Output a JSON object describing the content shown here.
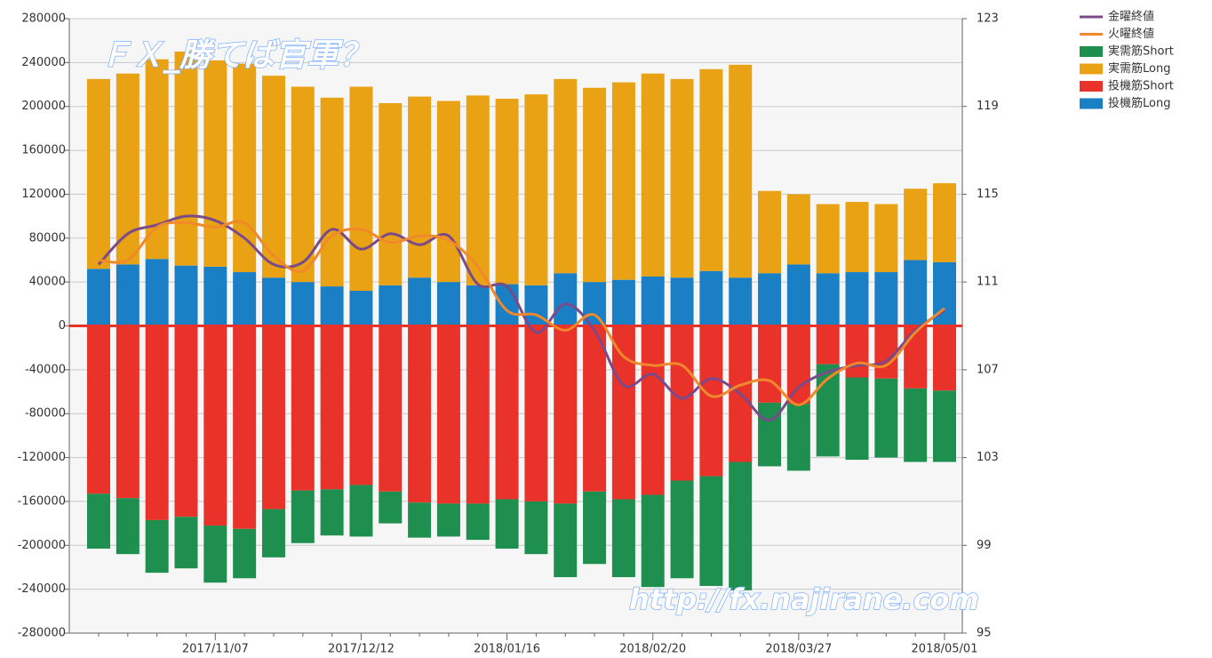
{
  "chart_data": {
    "type": "bar",
    "categories": [
      null,
      null,
      null,
      null,
      "2017/11/07",
      null,
      null,
      null,
      null,
      "2017/12/12",
      null,
      null,
      null,
      null,
      "2018/01/16",
      null,
      null,
      null,
      null,
      "2018/02/20",
      null,
      null,
      null,
      null,
      "2018/03/27",
      null,
      null,
      null,
      null,
      "2018/05/01"
    ],
    "series": [
      {
        "name": "金曜終値",
        "type": "line",
        "axis": "y2",
        "color": "#7a4a8a",
        "values": [
          111.8,
          113.2,
          113.6,
          114.0,
          113.8,
          113.0,
          111.8,
          111.9,
          113.4,
          112.5,
          113.2,
          112.7,
          113.1,
          110.9,
          110.8,
          108.7,
          110.0,
          108.8,
          106.3,
          106.8,
          105.7,
          106.6,
          105.9,
          104.7,
          106.2,
          106.9,
          107.2,
          107.4,
          108.8,
          109.7
        ]
      },
      {
        "name": "火曜終値",
        "type": "line",
        "axis": "y2",
        "color": "#f0892a",
        "values": [
          112.0,
          112.0,
          113.5,
          113.7,
          113.5,
          113.7,
          112.2,
          111.5,
          113.1,
          113.4,
          112.8,
          113.1,
          112.9,
          111.7,
          109.7,
          109.5,
          108.8,
          109.5,
          107.6,
          107.2,
          107.2,
          105.8,
          106.3,
          106.5,
          105.4,
          106.6,
          107.3,
          107.2,
          108.7,
          109.8
        ]
      },
      {
        "name": "実需筋Short",
        "type": "bar",
        "color": "#1e8f4e",
        "values": [
          -50000,
          -51000,
          -48000,
          -47000,
          -52000,
          -45000,
          -44000,
          -48000,
          -42000,
          -47000,
          -29000,
          -32000,
          -30000,
          -33000,
          -45000,
          -48000,
          -67000,
          -66000,
          -71000,
          -84000,
          -89000,
          -100000,
          -117000,
          -58000,
          -61000,
          -84000,
          -75000,
          -72000,
          -67000,
          -65000
        ]
      },
      {
        "name": "実需筋Long",
        "type": "bar",
        "color": "#e8a213",
        "values": [
          173000,
          174000,
          182000,
          195000,
          188000,
          190000,
          184000,
          178000,
          172000,
          186000,
          166000,
          165000,
          165000,
          173000,
          169000,
          174000,
          177000,
          177000,
          180000,
          185000,
          181000,
          184000,
          194000,
          75000,
          64000,
          63000,
          64000,
          62000,
          65000,
          72000
        ]
      },
      {
        "name": "投機筋Short",
        "type": "bar",
        "color": "#e8322a",
        "values": [
          -153000,
          -157000,
          -177000,
          -174000,
          -182000,
          -185000,
          -167000,
          -150000,
          -149000,
          -145000,
          -151000,
          -161000,
          -162000,
          -162000,
          -158000,
          -160000,
          -162000,
          -151000,
          -158000,
          -154000,
          -141000,
          -137000,
          -124000,
          -70000,
          -71000,
          -35000,
          -47000,
          -48000,
          -57000,
          -59000
        ]
      },
      {
        "name": "投機筋Long",
        "type": "bar",
        "color": "#1a7fc4",
        "values": [
          52000,
          56000,
          61000,
          55000,
          54000,
          49000,
          44000,
          40000,
          36000,
          32000,
          37000,
          44000,
          40000,
          37000,
          38000,
          37000,
          48000,
          40000,
          42000,
          45000,
          44000,
          50000,
          44000,
          48000,
          56000,
          48000,
          49000,
          49000,
          60000,
          58000
        ]
      }
    ],
    "ylim": [
      -280000,
      280000
    ],
    "yticks": [
      -280000,
      -240000,
      -200000,
      -160000,
      -120000,
      -80000,
      -40000,
      0,
      40000,
      80000,
      120000,
      160000,
      200000,
      240000,
      280000
    ],
    "y2lim": [
      95,
      123
    ],
    "y2ticks": [
      95,
      99,
      103,
      107,
      111,
      115,
      119,
      123
    ],
    "grid": true,
    "legend": "top-right",
    "annotations": [
      "ＦＸ_勝てば官軍？",
      "http://fx.najirane.com"
    ]
  }
}
